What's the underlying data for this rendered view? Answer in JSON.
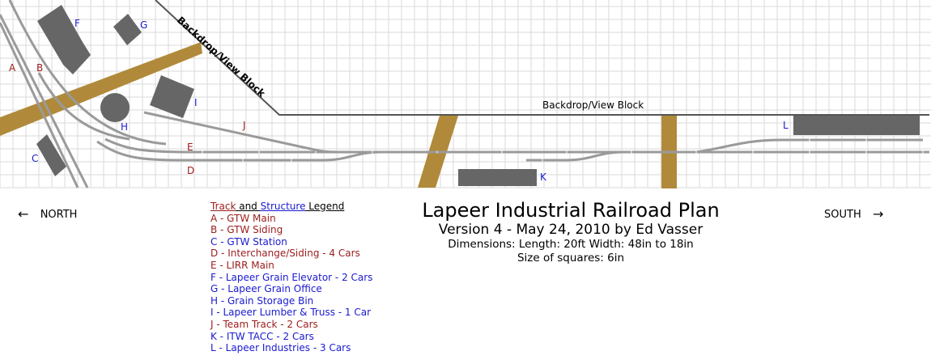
{
  "plan": {
    "labels": {
      "A": "A",
      "B": "B",
      "C": "C",
      "D": "D",
      "E": "E",
      "F": "F",
      "G": "G",
      "H": "H",
      "I": "I",
      "J": "J",
      "K": "K",
      "L": "L"
    },
    "backdrop_label_diagonal": "Backdrop/View Block",
    "backdrop_label_horizontal": "Backdrop/View Block"
  },
  "legend": {
    "title_track": "Track",
    "title_and": " and ",
    "title_structure": "Structure",
    "title_legend": " Legend",
    "items": [
      {
        "text": "A - GTW Main",
        "kind": "track"
      },
      {
        "text": "B - GTW Siding",
        "kind": "track"
      },
      {
        "text": "C - GTW Station",
        "kind": "structure"
      },
      {
        "text": "D - Interchange/Siding - 4 Cars",
        "kind": "track"
      },
      {
        "text": "E - LIRR Main",
        "kind": "track"
      },
      {
        "text": "F - Lapeer Grain Elevator - 2 Cars",
        "kind": "structure"
      },
      {
        "text": "G - Lapeer Grain Office",
        "kind": "structure"
      },
      {
        "text": "H - Grain Storage Bin",
        "kind": "structure"
      },
      {
        "text": "I - Lapeer Lumber & Truss - 1 Car",
        "kind": "structure"
      },
      {
        "text": "J - Team Track - 2 Cars",
        "kind": "track"
      },
      {
        "text": "K - ITW TACC - 2 Cars",
        "kind": "structure"
      },
      {
        "text": "L - Lapeer Industries - 3 Cars",
        "kind": "structure"
      }
    ]
  },
  "title": {
    "main": "Lapeer Industrial Railroad Plan",
    "version": "Version 4 - May 24, 2010 by Ed Vasser",
    "dimensions": "Dimensions: Length: 20ft Width: 48in to 18in",
    "squares": "Size of squares: 6in"
  },
  "directions": {
    "north": "NORTH",
    "south": "SOUTH",
    "left_arrow": "←",
    "right_arrow": "→"
  },
  "colors": {
    "track_label": "#9b1c1c",
    "structure_label": "#1a1ad0",
    "grid": "#d9d9d9",
    "road": "#b08a3a",
    "structure_fill": "#666666",
    "track": "#9a9a9a",
    "backdrop": "#555555"
  }
}
